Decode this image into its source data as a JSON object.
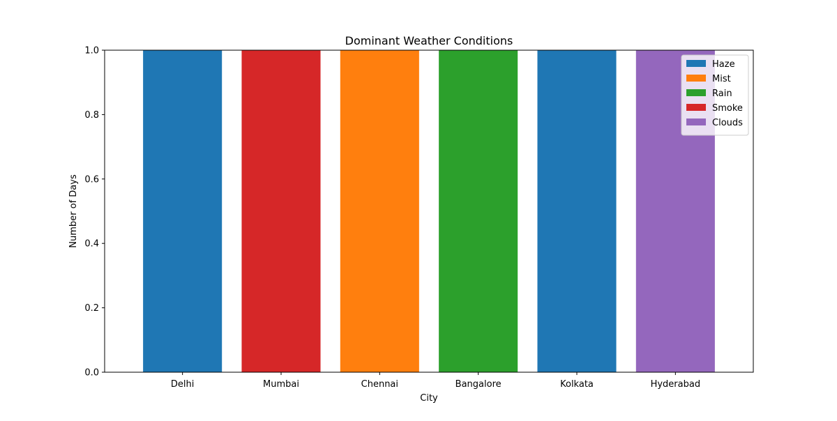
{
  "chart_data": {
    "type": "bar",
    "title": "Dominant Weather Conditions",
    "xlabel": "City",
    "ylabel": "Number of Days",
    "ylim": [
      0,
      1.0
    ],
    "yticks": [
      0.0,
      0.2,
      0.4,
      0.6,
      0.8,
      1.0
    ],
    "ytick_labels": [
      "0.0",
      "0.2",
      "0.4",
      "0.6",
      "0.8",
      "1.0"
    ],
    "categories": [
      "Delhi",
      "Mumbai",
      "Chennai",
      "Bangalore",
      "Kolkata",
      "Hyderabad"
    ],
    "bars": [
      {
        "category": "Delhi",
        "condition": "Haze",
        "value": 1
      },
      {
        "category": "Mumbai",
        "condition": "Smoke",
        "value": 1
      },
      {
        "category": "Chennai",
        "condition": "Mist",
        "value": 1
      },
      {
        "category": "Bangalore",
        "condition": "Rain",
        "value": 1
      },
      {
        "category": "Kolkata",
        "condition": "Haze",
        "value": 1
      },
      {
        "category": "Hyderabad",
        "condition": "Clouds",
        "value": 1
      }
    ],
    "legend": {
      "placement": "top-right",
      "entries": [
        {
          "label": "Haze",
          "color": "#1f77b4"
        },
        {
          "label": "Mist",
          "color": "#ff7f0e"
        },
        {
          "label": "Rain",
          "color": "#2ca02c"
        },
        {
          "label": "Smoke",
          "color": "#d62728"
        },
        {
          "label": "Clouds",
          "color": "#9467bd"
        }
      ]
    },
    "grid": false
  }
}
